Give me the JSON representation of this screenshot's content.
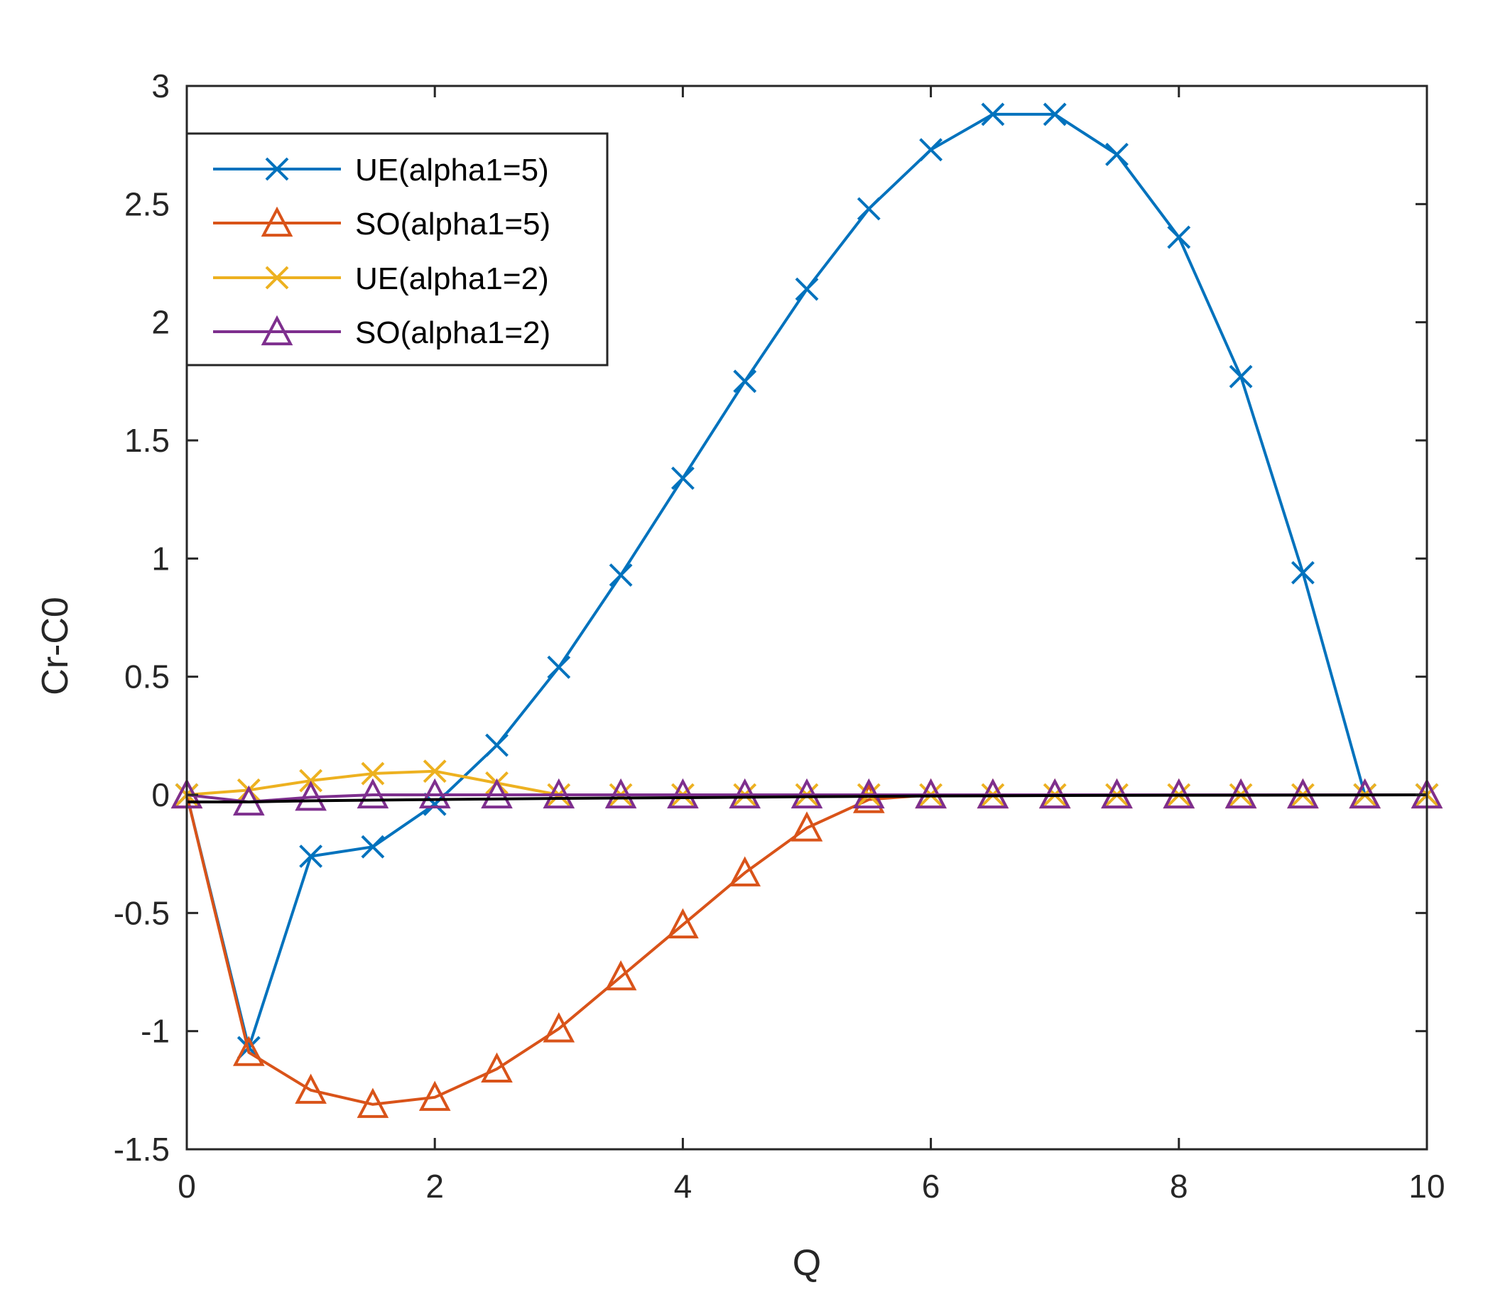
{
  "chart_data": {
    "type": "line",
    "title": "",
    "xlabel": "Q",
    "ylabel": "Cr-C0",
    "xlim": [
      0,
      10
    ],
    "ylim": [
      -1.5,
      3
    ],
    "xticks": [
      0,
      2,
      4,
      6,
      8,
      10
    ],
    "yticks": [
      -1.5,
      -1,
      -0.5,
      0,
      0.5,
      1,
      1.5,
      2,
      2.5,
      3
    ],
    "xtick_labels": [
      "0",
      "2",
      "4",
      "6",
      "8",
      "10"
    ],
    "ytick_labels": [
      "-1.5",
      "-1",
      "-0.5",
      "0",
      "0.5",
      "1",
      "1.5",
      "2",
      "2.5",
      "3"
    ],
    "grid": false,
    "legend_position": "top-left",
    "x": [
      0,
      0.5,
      1,
      1.5,
      2,
      2.5,
      3,
      3.5,
      4,
      4.5,
      5,
      5.5,
      6,
      6.5,
      7,
      7.5,
      8,
      8.5,
      9,
      9.5,
      10
    ],
    "series": [
      {
        "name": "UE(alpha1=5)",
        "color": "#0072BD",
        "marker": "x",
        "values": [
          0,
          -1.07,
          -0.26,
          -0.22,
          -0.04,
          0.21,
          0.54,
          0.93,
          1.34,
          1.75,
          2.14,
          2.48,
          2.73,
          2.88,
          2.88,
          2.71,
          2.36,
          1.77,
          0.94,
          0,
          0
        ]
      },
      {
        "name": "SO(alpha1=5)",
        "color": "#D95319",
        "marker": "triangle",
        "values": [
          0,
          -1.09,
          -1.25,
          -1.31,
          -1.28,
          -1.16,
          -0.99,
          -0.77,
          -0.55,
          -0.33,
          -0.14,
          -0.02,
          0,
          0,
          0,
          0,
          0,
          0,
          0,
          0,
          0
        ]
      },
      {
        "name": "UE(alpha1=2)",
        "color": "#EDB120",
        "marker": "x",
        "values": [
          0,
          0.02,
          0.06,
          0.09,
          0.1,
          0.05,
          0,
          0,
          0,
          0,
          0,
          0,
          0,
          0,
          0,
          0,
          0,
          0,
          0,
          0,
          0
        ]
      },
      {
        "name": "SO(alpha1=2)",
        "color": "#7E2F8E",
        "marker": "triangle",
        "values": [
          0,
          -0.03,
          -0.01,
          0,
          0,
          0,
          0,
          0,
          0,
          0,
          0,
          0,
          0,
          0,
          0,
          0,
          0,
          0,
          0,
          0,
          0
        ]
      }
    ],
    "reference_line": {
      "color": "#000000",
      "x": [
        0,
        0.5,
        1,
        2,
        3,
        4,
        5,
        6,
        7,
        8,
        9,
        10
      ],
      "values": [
        -0.03,
        -0.03,
        -0.025,
        -0.02,
        -0.015,
        -0.012,
        -0.008,
        -0.005,
        -0.003,
        -0.002,
        -0.001,
        0
      ]
    }
  }
}
